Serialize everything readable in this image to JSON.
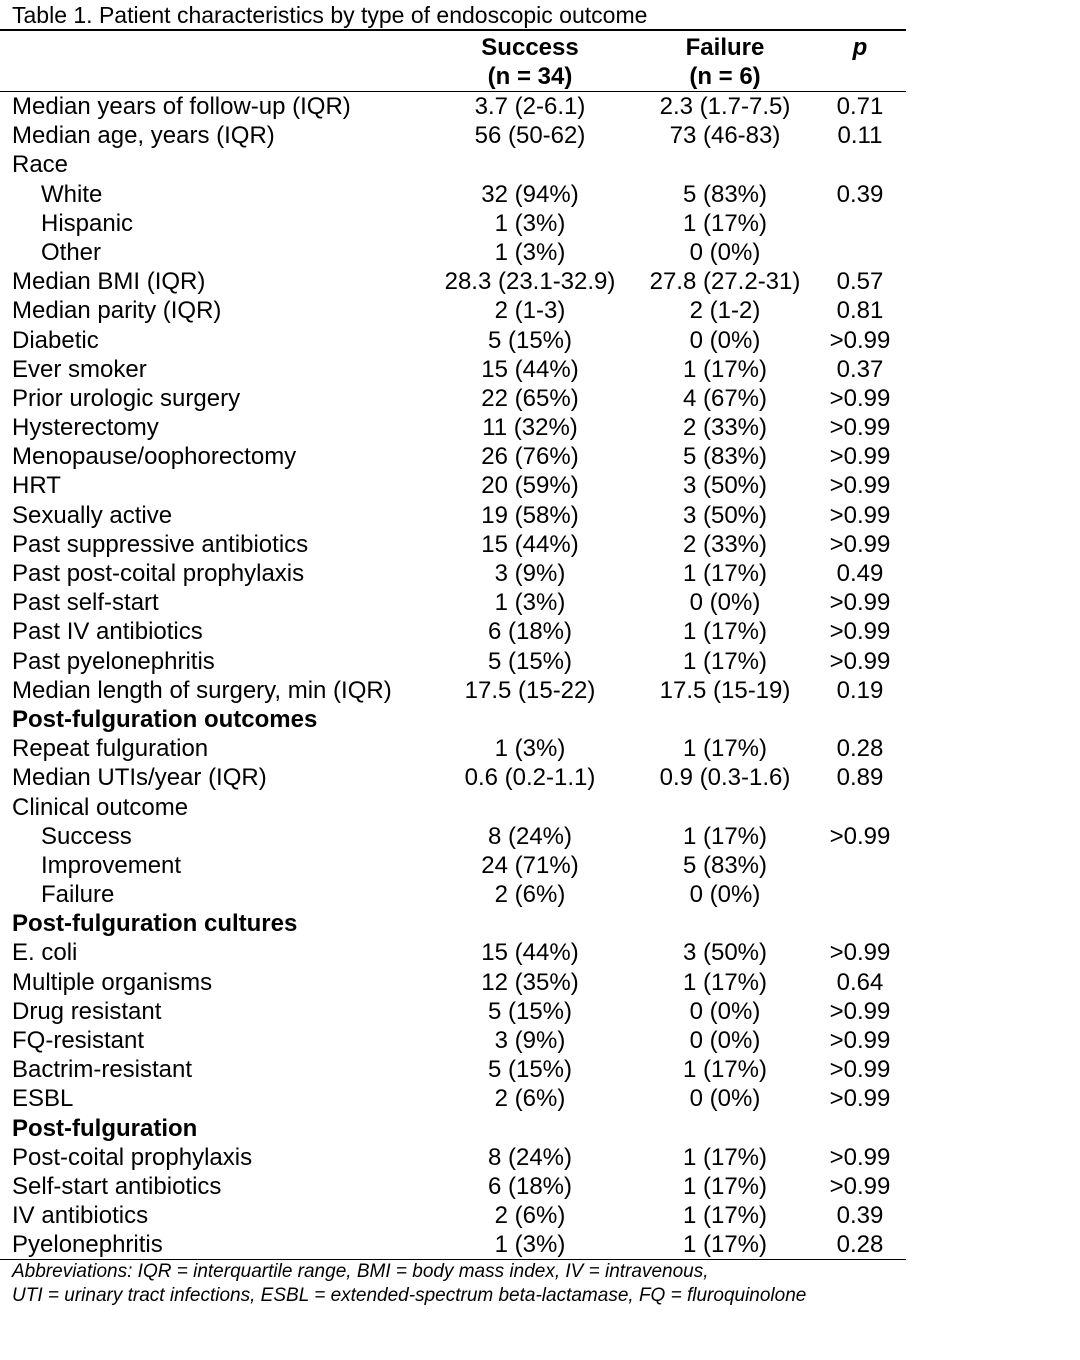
{
  "caption": "Table 1. Patient characteristics by type of endoscopic outcome",
  "headers": {
    "success_line1": "Success",
    "success_line2": "(n = 34)",
    "failure_line1": "Failure",
    "failure_line2": "(n = 6)",
    "p": "p"
  },
  "rows": [
    {
      "label": "Median years of follow-up (IQR)",
      "success": "3.7 (2-6.1)",
      "failure": "2.3 (1.7-7.5)",
      "p": "0.71",
      "kind": ""
    },
    {
      "label": "Median age, years (IQR)",
      "success": "56 (50-62)",
      "failure": "73 (46-83)",
      "p": "0.11",
      "kind": ""
    },
    {
      "label": "Race",
      "success": "",
      "failure": "",
      "p": "",
      "kind": ""
    },
    {
      "label": "White",
      "success": "32 (94%)",
      "failure": "5 (83%)",
      "p": "0.39",
      "kind": "indent"
    },
    {
      "label": "Hispanic",
      "success": "1 (3%)",
      "failure": "1 (17%)",
      "p": "",
      "kind": "indent"
    },
    {
      "label": "Other",
      "success": "1 (3%)",
      "failure": "0 (0%)",
      "p": "",
      "kind": "indent"
    },
    {
      "label": "Median BMI (IQR)",
      "success": "28.3 (23.1-32.9)",
      "failure": "27.8 (27.2-31)",
      "p": "0.57",
      "kind": ""
    },
    {
      "label": "Median parity (IQR)",
      "success": "2 (1-3)",
      "failure": "2 (1-2)",
      "p": "0.81",
      "kind": ""
    },
    {
      "label": "Diabetic",
      "success": "5 (15%)",
      "failure": "0 (0%)",
      "p": ">0.99",
      "kind": ""
    },
    {
      "label": "Ever smoker",
      "success": "15 (44%)",
      "failure": "1 (17%)",
      "p": "0.37",
      "kind": ""
    },
    {
      "label": "Prior urologic surgery",
      "success": "22 (65%)",
      "failure": "4 (67%)",
      "p": ">0.99",
      "kind": ""
    },
    {
      "label": "Hysterectomy",
      "success": "11 (32%)",
      "failure": "2 (33%)",
      "p": ">0.99",
      "kind": ""
    },
    {
      "label": "Menopause/oophorectomy",
      "success": "26 (76%)",
      "failure": "5 (83%)",
      "p": ">0.99",
      "kind": ""
    },
    {
      "label": "HRT",
      "success": "20 (59%)",
      "failure": "3 (50%)",
      "p": ">0.99",
      "kind": ""
    },
    {
      "label": "Sexually active",
      "success": "19 (58%)",
      "failure": "3 (50%)",
      "p": ">0.99",
      "kind": ""
    },
    {
      "label": "Past suppressive antibiotics",
      "success": "15 (44%)",
      "failure": "2 (33%)",
      "p": ">0.99",
      "kind": ""
    },
    {
      "label": "Past post-coital prophylaxis",
      "success": "3 (9%)",
      "failure": "1 (17%)",
      "p": "0.49",
      "kind": ""
    },
    {
      "label": "Past self-start",
      "success": "1 (3%)",
      "failure": "0 (0%)",
      "p": ">0.99",
      "kind": ""
    },
    {
      "label": "Past IV antibiotics",
      "success": "6 (18%)",
      "failure": "1 (17%)",
      "p": ">0.99",
      "kind": ""
    },
    {
      "label": "Past pyelonephritis",
      "success": "5 (15%)",
      "failure": "1 (17%)",
      "p": ">0.99",
      "kind": ""
    },
    {
      "label": "Median length of surgery, min (IQR)",
      "success": "17.5 (15-22)",
      "failure": "17.5 (15-19)",
      "p": "0.19",
      "kind": ""
    },
    {
      "label": "Post-fulguration outcomes",
      "success": "",
      "failure": "",
      "p": "",
      "kind": "section"
    },
    {
      "label": "Repeat fulguration",
      "success": "1 (3%)",
      "failure": "1 (17%)",
      "p": "0.28",
      "kind": ""
    },
    {
      "label": "Median UTIs/year (IQR)",
      "success": "0.6 (0.2-1.1)",
      "failure": "0.9 (0.3-1.6)",
      "p": "0.89",
      "kind": ""
    },
    {
      "label": "Clinical outcome",
      "success": "",
      "failure": "",
      "p": "",
      "kind": ""
    },
    {
      "label": "Success",
      "success": "8 (24%)",
      "failure": "1 (17%)",
      "p": ">0.99",
      "kind": "indent"
    },
    {
      "label": "Improvement",
      "success": "24 (71%)",
      "failure": "5 (83%)",
      "p": "",
      "kind": "indent"
    },
    {
      "label": "Failure",
      "success": "2 (6%)",
      "failure": "0 (0%)",
      "p": "",
      "kind": "indent"
    },
    {
      "label": "Post-fulguration cultures",
      "success": "",
      "failure": "",
      "p": "",
      "kind": "section"
    },
    {
      "label": "E. coli",
      "success": "15 (44%)",
      "failure": "3 (50%)",
      "p": ">0.99",
      "kind": ""
    },
    {
      "label": "Multiple organisms",
      "success": "12 (35%)",
      "failure": "1 (17%)",
      "p": "0.64",
      "kind": ""
    },
    {
      "label": "Drug resistant",
      "success": "5 (15%)",
      "failure": "0 (0%)",
      "p": ">0.99",
      "kind": ""
    },
    {
      "label": "FQ-resistant",
      "success": "3 (9%)",
      "failure": "0 (0%)",
      "p": ">0.99",
      "kind": ""
    },
    {
      "label": "Bactrim-resistant",
      "success": "5 (15%)",
      "failure": "1 (17%)",
      "p": ">0.99",
      "kind": ""
    },
    {
      "label": "ESBL",
      "success": "2 (6%)",
      "failure": "0 (0%)",
      "p": ">0.99",
      "kind": ""
    },
    {
      "label": "Post-fulguration",
      "success": "",
      "failure": "",
      "p": "",
      "kind": "section"
    },
    {
      "label": "Post-coital prophylaxis",
      "success": "8 (24%)",
      "failure": "1 (17%)",
      "p": ">0.99",
      "kind": ""
    },
    {
      "label": "Self-start antibiotics",
      "success": "6 (18%)",
      "failure": "1 (17%)",
      "p": ">0.99",
      "kind": ""
    },
    {
      "label": "IV antibiotics",
      "success": "2 (6%)",
      "failure": "1 (17%)",
      "p": "0.39",
      "kind": ""
    },
    {
      "label": "Pyelonephritis",
      "success": "1 (3%)",
      "failure": "1 (17%)",
      "p": "0.28",
      "kind": ""
    }
  ],
  "footnote": {
    "line1": "Abbreviations: IQR = interquartile range, BMI = body mass index, IV = intravenous,",
    "line2": "UTI = urinary tract infections, ESBL = extended-spectrum beta-lactamase, FQ = fluroquinolone"
  }
}
